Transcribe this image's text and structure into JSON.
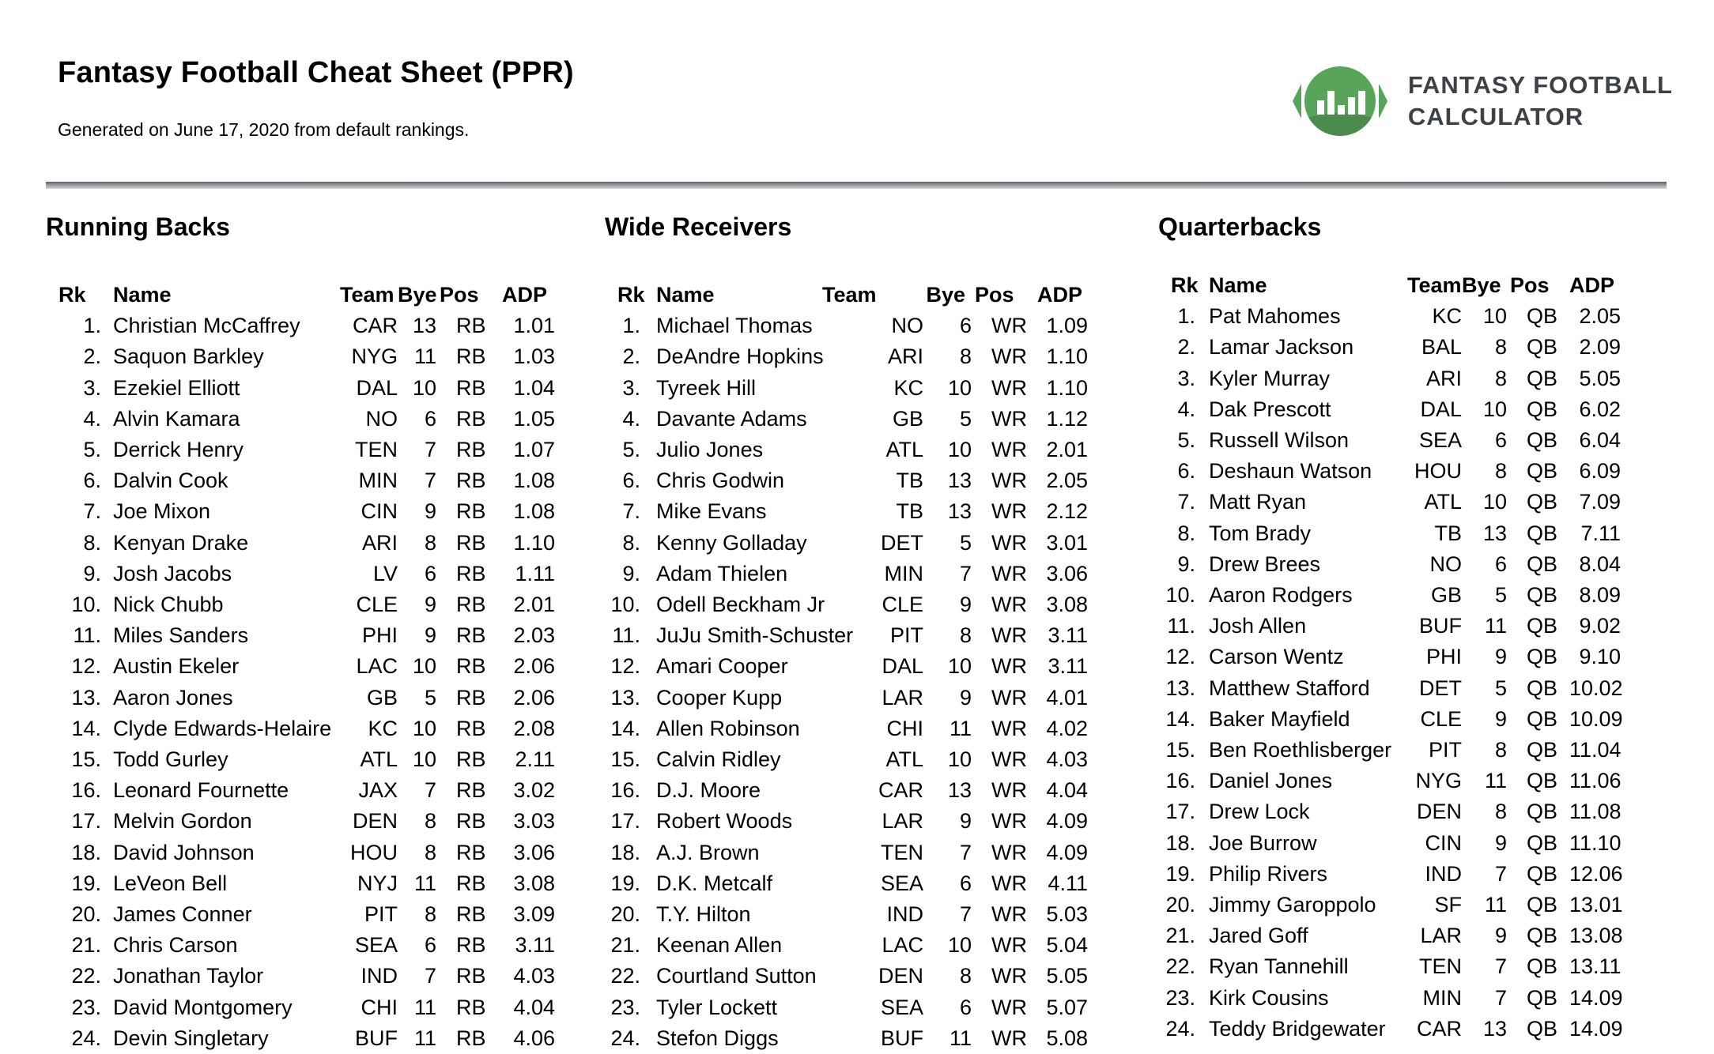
{
  "page": {
    "title": "Fantasy Football Cheat Sheet (PPR)",
    "subtitle": "Generated on June 17, 2020 from default rankings."
  },
  "logo": {
    "icon": "football-bar-chart-icon",
    "wordmark_line1": "FANTASY FOOTBALL",
    "wordmark_line2": "CALCULATOR",
    "football_green": "#57A45A",
    "football_band_green": "#4B8C4E",
    "bar_color": "#FFFFFF",
    "wordmark_color": "#3C4247"
  },
  "table_headers": [
    "Rk",
    "Name",
    "Team",
    "Bye",
    "Pos",
    "ADP"
  ],
  "sections": [
    {
      "title": "Running Backs",
      "players": [
        [
          "1.",
          "Christian McCaffrey",
          "CAR",
          "13",
          "RB",
          "1.01"
        ],
        [
          "2.",
          "Saquon Barkley",
          "NYG",
          "11",
          "RB",
          "1.03"
        ],
        [
          "3.",
          "Ezekiel Elliott",
          "DAL",
          "10",
          "RB",
          "1.04"
        ],
        [
          "4.",
          "Alvin Kamara",
          "NO",
          "6",
          "RB",
          "1.05"
        ],
        [
          "5.",
          "Derrick Henry",
          "TEN",
          "7",
          "RB",
          "1.07"
        ],
        [
          "6.",
          "Dalvin Cook",
          "MIN",
          "7",
          "RB",
          "1.08"
        ],
        [
          "7.",
          "Joe Mixon",
          "CIN",
          "9",
          "RB",
          "1.08"
        ],
        [
          "8.",
          "Kenyan Drake",
          "ARI",
          "8",
          "RB",
          "1.10"
        ],
        [
          "9.",
          "Josh Jacobs",
          "LV",
          "6",
          "RB",
          "1.11"
        ],
        [
          "10.",
          "Nick Chubb",
          "CLE",
          "9",
          "RB",
          "2.01"
        ],
        [
          "11.",
          "Miles Sanders",
          "PHI",
          "9",
          "RB",
          "2.03"
        ],
        [
          "12.",
          "Austin Ekeler",
          "LAC",
          "10",
          "RB",
          "2.06"
        ],
        [
          "13.",
          "Aaron Jones",
          "GB",
          "5",
          "RB",
          "2.06"
        ],
        [
          "14.",
          "Clyde Edwards-Helaire",
          "KC",
          "10",
          "RB",
          "2.08"
        ],
        [
          "15.",
          "Todd Gurley",
          "ATL",
          "10",
          "RB",
          "2.11"
        ],
        [
          "16.",
          "Leonard Fournette",
          "JAX",
          "7",
          "RB",
          "3.02"
        ],
        [
          "17.",
          "Melvin Gordon",
          "DEN",
          "8",
          "RB",
          "3.03"
        ],
        [
          "18.",
          "David Johnson",
          "HOU",
          "8",
          "RB",
          "3.06"
        ],
        [
          "19.",
          "LeVeon Bell",
          "NYJ",
          "11",
          "RB",
          "3.08"
        ],
        [
          "20.",
          "James Conner",
          "PIT",
          "8",
          "RB",
          "3.09"
        ],
        [
          "21.",
          "Chris Carson",
          "SEA",
          "6",
          "RB",
          "3.11"
        ],
        [
          "22.",
          "Jonathan Taylor",
          "IND",
          "7",
          "RB",
          "4.03"
        ],
        [
          "23.",
          "David Montgomery",
          "CHI",
          "11",
          "RB",
          "4.04"
        ],
        [
          "24.",
          "Devin Singletary",
          "BUF",
          "11",
          "RB",
          "4.06"
        ]
      ]
    },
    {
      "title": "Wide Receivers",
      "players": [
        [
          "1.",
          "Michael Thomas",
          "NO",
          "6",
          "WR",
          "1.09"
        ],
        [
          "2.",
          "DeAndre Hopkins",
          "ARI",
          "8",
          "WR",
          "1.10"
        ],
        [
          "3.",
          "Tyreek Hill",
          "KC",
          "10",
          "WR",
          "1.10"
        ],
        [
          "4.",
          "Davante Adams",
          "GB",
          "5",
          "WR",
          "1.12"
        ],
        [
          "5.",
          "Julio Jones",
          "ATL",
          "10",
          "WR",
          "2.01"
        ],
        [
          "6.",
          "Chris Godwin",
          "TB",
          "13",
          "WR",
          "2.05"
        ],
        [
          "7.",
          "Mike Evans",
          "TB",
          "13",
          "WR",
          "2.12"
        ],
        [
          "8.",
          "Kenny Golladay",
          "DET",
          "5",
          "WR",
          "3.01"
        ],
        [
          "9.",
          "Adam Thielen",
          "MIN",
          "7",
          "WR",
          "3.06"
        ],
        [
          "10.",
          "Odell Beckham Jr",
          "CLE",
          "9",
          "WR",
          "3.08"
        ],
        [
          "11.",
          "JuJu Smith-Schuster",
          "PIT",
          "8",
          "WR",
          "3.11"
        ],
        [
          "12.",
          "Amari Cooper",
          "DAL",
          "10",
          "WR",
          "3.11"
        ],
        [
          "13.",
          "Cooper Kupp",
          "LAR",
          "9",
          "WR",
          "4.01"
        ],
        [
          "14.",
          "Allen Robinson",
          "CHI",
          "11",
          "WR",
          "4.02"
        ],
        [
          "15.",
          "Calvin Ridley",
          "ATL",
          "10",
          "WR",
          "4.03"
        ],
        [
          "16.",
          "D.J. Moore",
          "CAR",
          "13",
          "WR",
          "4.04"
        ],
        [
          "17.",
          "Robert Woods",
          "LAR",
          "9",
          "WR",
          "4.09"
        ],
        [
          "18.",
          "A.J. Brown",
          "TEN",
          "7",
          "WR",
          "4.09"
        ],
        [
          "19.",
          "D.K. Metcalf",
          "SEA",
          "6",
          "WR",
          "4.11"
        ],
        [
          "20.",
          "T.Y. Hilton",
          "IND",
          "7",
          "WR",
          "5.03"
        ],
        [
          "21.",
          "Keenan Allen",
          "LAC",
          "10",
          "WR",
          "5.04"
        ],
        [
          "22.",
          "Courtland Sutton",
          "DEN",
          "8",
          "WR",
          "5.05"
        ],
        [
          "23.",
          "Tyler Lockett",
          "SEA",
          "6",
          "WR",
          "5.07"
        ],
        [
          "24.",
          "Stefon Diggs",
          "BUF",
          "11",
          "WR",
          "5.08"
        ]
      ]
    },
    {
      "title": "Quarterbacks",
      "players": [
        [
          "1.",
          "Pat Mahomes",
          "KC",
          "10",
          "QB",
          "2.05"
        ],
        [
          "2.",
          "Lamar Jackson",
          "BAL",
          "8",
          "QB",
          "2.09"
        ],
        [
          "3.",
          "Kyler Murray",
          "ARI",
          "8",
          "QB",
          "5.05"
        ],
        [
          "4.",
          "Dak Prescott",
          "DAL",
          "10",
          "QB",
          "6.02"
        ],
        [
          "5.",
          "Russell Wilson",
          "SEA",
          "6",
          "QB",
          "6.04"
        ],
        [
          "6.",
          "Deshaun Watson",
          "HOU",
          "8",
          "QB",
          "6.09"
        ],
        [
          "7.",
          "Matt Ryan",
          "ATL",
          "10",
          "QB",
          "7.09"
        ],
        [
          "8.",
          "Tom Brady",
          "TB",
          "13",
          "QB",
          "7.11"
        ],
        [
          "9.",
          "Drew Brees",
          "NO",
          "6",
          "QB",
          "8.04"
        ],
        [
          "10.",
          "Aaron Rodgers",
          "GB",
          "5",
          "QB",
          "8.09"
        ],
        [
          "11.",
          "Josh Allen",
          "BUF",
          "11",
          "QB",
          "9.02"
        ],
        [
          "12.",
          "Carson Wentz",
          "PHI",
          "9",
          "QB",
          "9.10"
        ],
        [
          "13.",
          "Matthew Stafford",
          "DET",
          "5",
          "QB",
          "10.02"
        ],
        [
          "14.",
          "Baker Mayfield",
          "CLE",
          "9",
          "QB",
          "10.09"
        ],
        [
          "15.",
          "Ben Roethlisberger",
          "PIT",
          "8",
          "QB",
          "11.04"
        ],
        [
          "16.",
          "Daniel Jones",
          "NYG",
          "11",
          "QB",
          "11.06"
        ],
        [
          "17.",
          "Drew Lock",
          "DEN",
          "8",
          "QB",
          "11.08"
        ],
        [
          "18.",
          "Joe Burrow",
          "CIN",
          "9",
          "QB",
          "11.10"
        ],
        [
          "19.",
          "Philip Rivers",
          "IND",
          "7",
          "QB",
          "12.06"
        ],
        [
          "20.",
          "Jimmy Garoppolo",
          "SF",
          "11",
          "QB",
          "13.01"
        ],
        [
          "21.",
          "Jared Goff",
          "LAR",
          "9",
          "QB",
          "13.08"
        ],
        [
          "22.",
          "Ryan Tannehill",
          "TEN",
          "7",
          "QB",
          "13.11"
        ],
        [
          "23.",
          "Kirk Cousins",
          "MIN",
          "7",
          "QB",
          "14.09"
        ],
        [
          "24.",
          "Teddy Bridgewater",
          "CAR",
          "13",
          "QB",
          "14.09"
        ]
      ]
    }
  ]
}
